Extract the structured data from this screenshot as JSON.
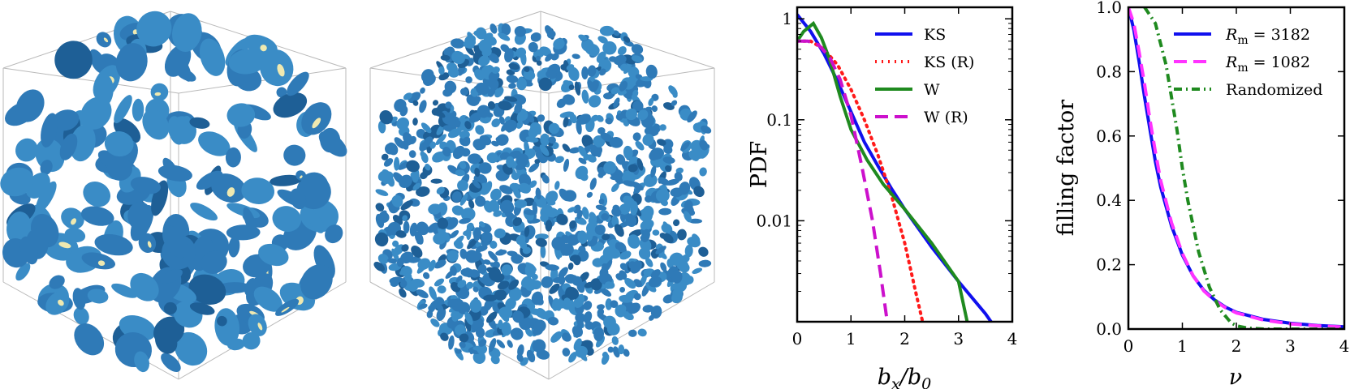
{
  "colors": {
    "blob": "#2f7ab7",
    "blob_highlight": "#efe9b0",
    "cube_edge": "#b9b9b9",
    "blue": "#1010ee",
    "red": "#ff1a1a",
    "green": "#1f8a1f",
    "magenta": "#cc11cc",
    "magenta_light": "#ff33ff"
  },
  "chart_data": [
    {
      "type": "line",
      "xlabel": "b_x/b_0",
      "ylabel": "PDF",
      "xlim": [
        0,
        4
      ],
      "ylim": [
        0.001,
        1.3
      ],
      "yscale": "log",
      "grid": false,
      "legend_position": "top-right",
      "x_ticks": [
        "0",
        "1",
        "2",
        "3",
        "4"
      ],
      "y_ticks": [
        {
          "value": 1,
          "label": "1"
        },
        {
          "value": 0.1,
          "label": "0.1"
        },
        {
          "value": 0.01,
          "label": "0.01"
        }
      ],
      "series": [
        {
          "name": "KS",
          "color": "#1010ee",
          "dash": "solid",
          "x": [
            0,
            0.25,
            0.5,
            0.75,
            1.0,
            1.25,
            1.5,
            1.75,
            2.0,
            2.5,
            3.0,
            3.5,
            4.0
          ],
          "y": [
            1.1,
            0.75,
            0.45,
            0.24,
            0.12,
            0.06,
            0.035,
            0.021,
            0.013,
            0.0055,
            0.0025,
            0.0012,
            0.0005
          ]
        },
        {
          "name": "KS (R)",
          "color": "#ff1a1a",
          "dash": "dot",
          "x": [
            0,
            0.25,
            0.5,
            0.75,
            1.0,
            1.25,
            1.5,
            1.75,
            2.0,
            2.2,
            2.4
          ],
          "y": [
            0.6,
            0.6,
            0.5,
            0.35,
            0.2,
            0.1,
            0.045,
            0.018,
            0.006,
            0.002,
            0.0007
          ]
        },
        {
          "name": "W",
          "color": "#1f8a1f",
          "dash": "solid",
          "x": [
            0,
            0.12,
            0.3,
            0.45,
            0.6,
            0.8,
            1.0,
            1.3,
            1.6,
            2.0,
            2.5,
            3.0,
            3.2
          ],
          "y": [
            0.6,
            0.75,
            0.9,
            0.65,
            0.4,
            0.17,
            0.08,
            0.04,
            0.023,
            0.013,
            0.006,
            0.0025,
            0.0008
          ]
        },
        {
          "name": "W (R)",
          "color": "#cc11cc",
          "dash": "dashed",
          "x": [
            0,
            0.2,
            0.4,
            0.6,
            0.8,
            1.0,
            1.2,
            1.4,
            1.55,
            1.7
          ],
          "y": [
            0.6,
            0.6,
            0.55,
            0.42,
            0.25,
            0.11,
            0.035,
            0.01,
            0.003,
            0.0008
          ]
        }
      ]
    },
    {
      "type": "line",
      "xlabel": "ν",
      "ylabel": "filling factor",
      "xlim": [
        0,
        4
      ],
      "ylim": [
        0,
        1
      ],
      "yscale": "linear",
      "grid": false,
      "legend_position": "top-right",
      "x_ticks": [
        "0",
        "1",
        "2",
        "3",
        "4"
      ],
      "y_ticks": [
        {
          "value": 0,
          "label": "0.0"
        },
        {
          "value": 0.2,
          "label": "0.2"
        },
        {
          "value": 0.4,
          "label": "0.4"
        },
        {
          "value": 0.6,
          "label": "0.6"
        },
        {
          "value": 0.8,
          "label": "0.8"
        },
        {
          "value": 1,
          "label": "1.0"
        }
      ],
      "series": [
        {
          "name": "R_m = 3182",
          "color": "#1010ee",
          "dash": "solid",
          "x": [
            0,
            0.1,
            0.2,
            0.3,
            0.4,
            0.5,
            0.6,
            0.8,
            1.0,
            1.2,
            1.4,
            1.6,
            1.8,
            2.0,
            2.5,
            3.0,
            3.5,
            4.0
          ],
          "y": [
            1.0,
            0.93,
            0.83,
            0.72,
            0.62,
            0.52,
            0.44,
            0.32,
            0.23,
            0.165,
            0.12,
            0.09,
            0.068,
            0.052,
            0.03,
            0.018,
            0.011,
            0.007
          ]
        },
        {
          "name": "R_m = 1082",
          "color": "#ff33ff",
          "dash": "dashed",
          "x": [
            0,
            0.1,
            0.2,
            0.3,
            0.4,
            0.5,
            0.6,
            0.8,
            1.0,
            1.2,
            1.4,
            1.6,
            1.8,
            2.0,
            2.5,
            3.0,
            3.5,
            4.0
          ],
          "y": [
            1.0,
            0.95,
            0.86,
            0.76,
            0.65,
            0.55,
            0.46,
            0.33,
            0.235,
            0.165,
            0.118,
            0.088,
            0.066,
            0.05,
            0.028,
            0.016,
            0.01,
            0.006
          ]
        },
        {
          "name": "Randomized",
          "color": "#1f8a1f",
          "dash": "dashdot",
          "x": [
            0.3,
            0.5,
            0.7,
            0.9,
            1.0,
            1.1,
            1.3,
            1.5,
            1.7,
            1.9,
            2.0,
            2.2,
            2.5,
            3.0,
            4.0
          ],
          "y": [
            1.0,
            0.95,
            0.82,
            0.62,
            0.5,
            0.4,
            0.24,
            0.13,
            0.06,
            0.02,
            0.01,
            0.003,
            0.0,
            0.0,
            0.0
          ]
        }
      ]
    }
  ]
}
